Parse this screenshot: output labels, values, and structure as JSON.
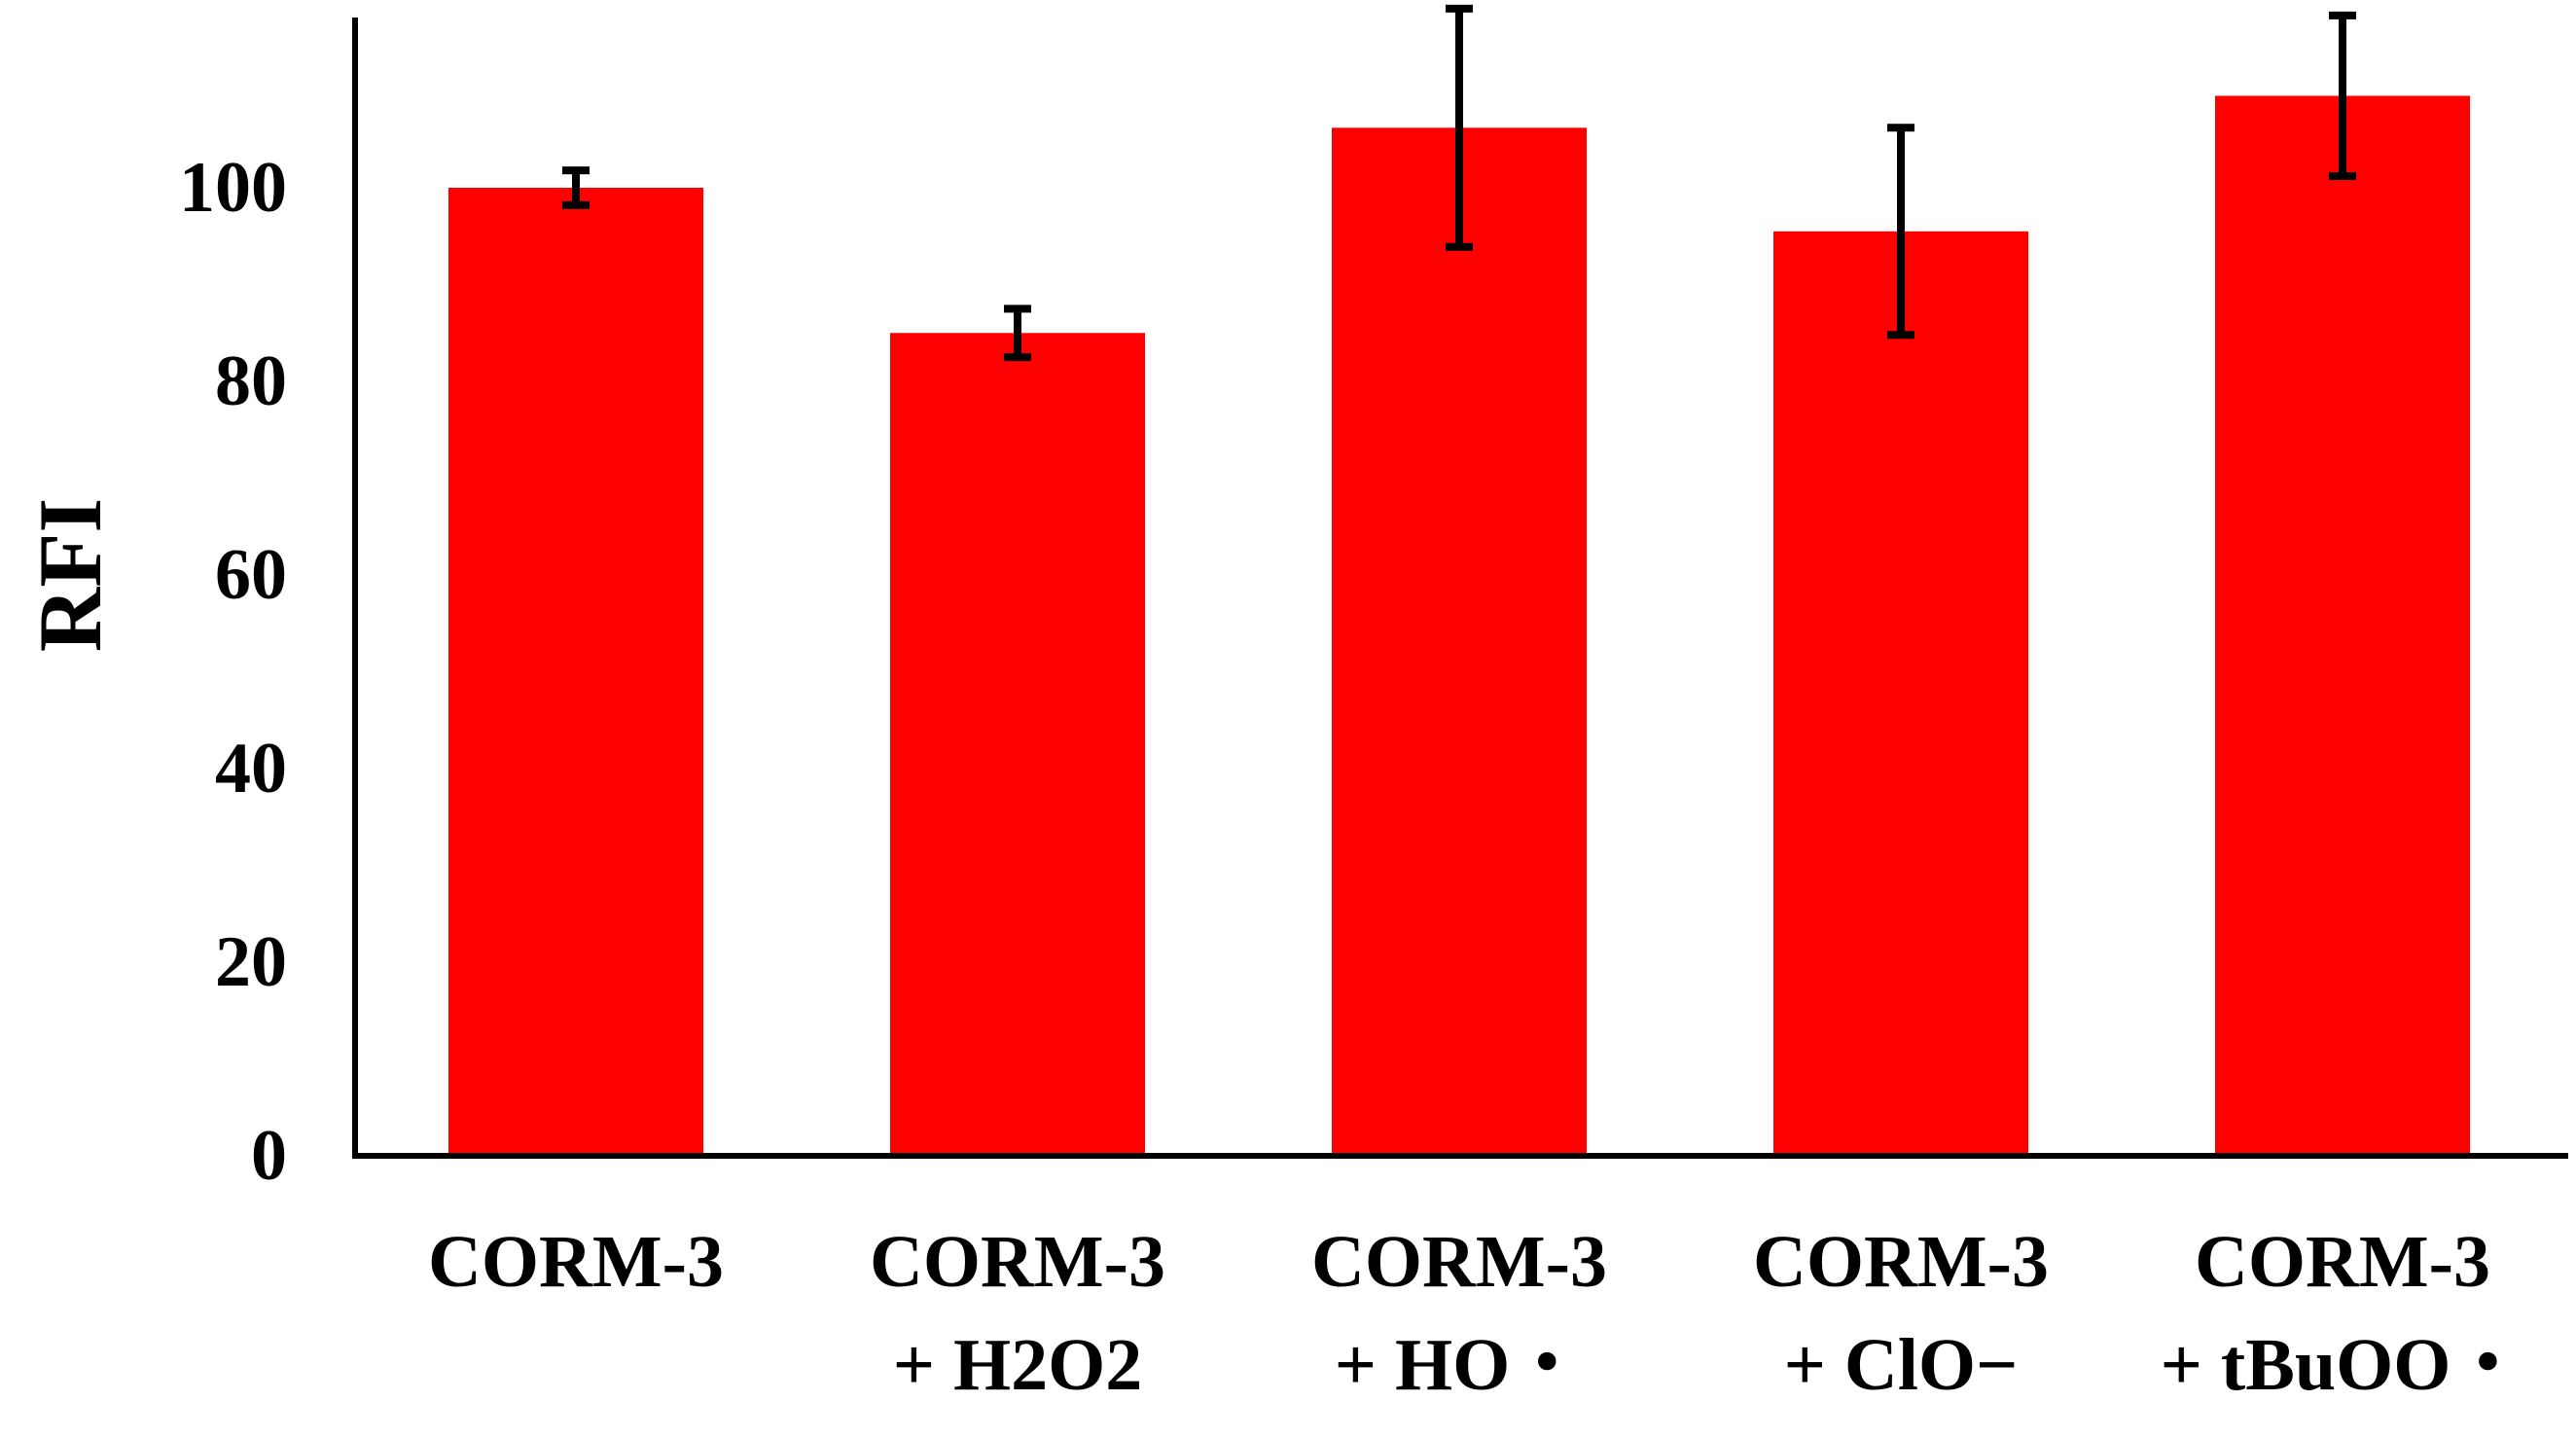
{
  "chart_data": {
    "type": "bar",
    "title": "",
    "xlabel": "",
    "ylabel": "RFI",
    "ylim": [
      0,
      118
    ],
    "yticks": [
      0,
      20,
      40,
      60,
      80,
      100
    ],
    "grid": false,
    "legend": "none",
    "bar_color": "#ff0000",
    "axis_color": "#000000",
    "categories": [
      [
        "CORM-3"
      ],
      [
        "CORM-3",
        "+ H2O2"
      ],
      [
        "CORM-3",
        "+ HO・"
      ],
      [
        "CORM-3",
        "+ ClO−"
      ],
      [
        "CORM-3",
        "+ tBuOO・"
      ]
    ],
    "series": [
      {
        "values": [
          100,
          85,
          106.2,
          95.5,
          109.5
        ],
        "error": [
          1.8,
          2.5,
          12.3,
          10.7,
          8.3
        ]
      }
    ]
  }
}
